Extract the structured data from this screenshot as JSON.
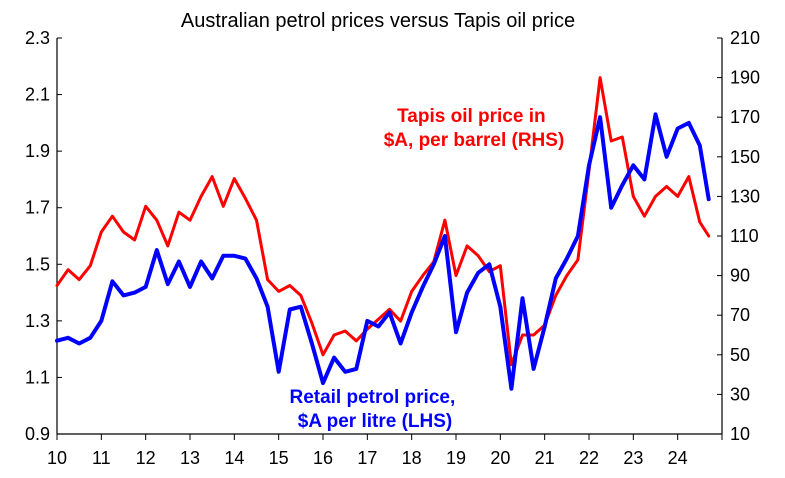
{
  "chart_data": {
    "type": "line",
    "title": "Australian petrol prices versus Tapis oil price",
    "x_ticks": [
      "10",
      "11",
      "12",
      "13",
      "14",
      "15",
      "16",
      "17",
      "18",
      "19",
      "20",
      "21",
      "22",
      "23",
      "24"
    ],
    "x_range": [
      2010.0,
      2025.0
    ],
    "y_left": {
      "range": [
        0.9,
        2.3
      ],
      "ticks": [
        "0.9",
        "1.1",
        "1.3",
        "1.5",
        "1.7",
        "1.9",
        "2.1",
        "2.3"
      ]
    },
    "y_right": {
      "range": [
        10,
        210
      ],
      "ticks": [
        "10",
        "30",
        "50",
        "70",
        "90",
        "110",
        "130",
        "150",
        "170",
        "190",
        "210"
      ]
    },
    "grid": false,
    "annotations": [
      {
        "id": "tapis",
        "lines": [
          "Tapis oil price in",
          "$A, per barrel (RHS)"
        ],
        "color": "#ff0000"
      },
      {
        "id": "petrol",
        "lines": [
          "Retail petrol price,",
          "$A per litre (LHS)"
        ],
        "color": "#0000ff"
      }
    ],
    "series": [
      {
        "key": "tapis",
        "axis": "right",
        "color": "#ff0000",
        "x": [
          2010.0,
          2010.25,
          2010.5,
          2010.75,
          2011.0,
          2011.25,
          2011.5,
          2011.75,
          2012.0,
          2012.25,
          2012.5,
          2012.75,
          2013.0,
          2013.25,
          2013.5,
          2013.75,
          2014.0,
          2014.25,
          2014.5,
          2014.75,
          2015.0,
          2015.25,
          2015.5,
          2015.75,
          2016.0,
          2016.25,
          2016.5,
          2016.75,
          2017.0,
          2017.25,
          2017.5,
          2017.75,
          2018.0,
          2018.25,
          2018.5,
          2018.75,
          2019.0,
          2019.25,
          2019.5,
          2019.75,
          2020.0,
          2020.25,
          2020.5,
          2020.75,
          2021.0,
          2021.25,
          2021.5,
          2021.75,
          2022.0,
          2022.25,
          2022.5,
          2022.75,
          2023.0,
          2023.25,
          2023.5,
          2023.75,
          2024.0,
          2024.25,
          2024.5,
          2024.7
        ],
        "values": [
          85,
          93,
          88,
          95,
          112,
          120,
          112,
          108,
          125,
          118,
          105,
          122,
          118,
          130,
          140,
          125,
          139,
          129,
          118,
          88,
          82,
          85,
          80,
          66,
          50,
          60,
          62,
          57,
          63,
          68,
          73,
          67,
          82,
          90,
          97,
          118,
          90,
          105,
          100,
          92,
          95,
          45,
          60,
          60,
          65,
          80,
          90,
          98,
          143,
          190,
          158,
          160,
          130,
          120,
          130,
          135,
          130,
          140,
          117,
          110
        ]
      },
      {
        "key": "petrol",
        "axis": "left",
        "color": "#0000ff",
        "x": [
          2010.0,
          2010.25,
          2010.5,
          2010.75,
          2011.0,
          2011.25,
          2011.5,
          2011.75,
          2012.0,
          2012.25,
          2012.5,
          2012.75,
          2013.0,
          2013.25,
          2013.5,
          2013.75,
          2014.0,
          2014.25,
          2014.5,
          2014.75,
          2015.0,
          2015.25,
          2015.5,
          2015.75,
          2016.0,
          2016.25,
          2016.5,
          2016.75,
          2017.0,
          2017.25,
          2017.5,
          2017.75,
          2018.0,
          2018.25,
          2018.5,
          2018.75,
          2019.0,
          2019.25,
          2019.5,
          2019.75,
          2020.0,
          2020.25,
          2020.5,
          2020.75,
          2021.0,
          2021.25,
          2021.5,
          2021.75,
          2022.0,
          2022.25,
          2022.5,
          2022.75,
          2023.0,
          2023.25,
          2023.5,
          2023.75,
          2024.0,
          2024.25,
          2024.5,
          2024.7
        ],
        "values": [
          1.23,
          1.24,
          1.22,
          1.24,
          1.3,
          1.44,
          1.39,
          1.4,
          1.42,
          1.55,
          1.43,
          1.51,
          1.42,
          1.51,
          1.45,
          1.53,
          1.53,
          1.52,
          1.45,
          1.35,
          1.12,
          1.34,
          1.35,
          1.22,
          1.08,
          1.17,
          1.12,
          1.13,
          1.3,
          1.28,
          1.33,
          1.22,
          1.33,
          1.42,
          1.5,
          1.6,
          1.26,
          1.4,
          1.47,
          1.5,
          1.35,
          1.06,
          1.38,
          1.13,
          1.28,
          1.45,
          1.52,
          1.6,
          1.85,
          2.02,
          1.7,
          1.78,
          1.85,
          1.8,
          2.03,
          1.88,
          1.98,
          2.0,
          1.92,
          1.73
        ]
      }
    ]
  }
}
